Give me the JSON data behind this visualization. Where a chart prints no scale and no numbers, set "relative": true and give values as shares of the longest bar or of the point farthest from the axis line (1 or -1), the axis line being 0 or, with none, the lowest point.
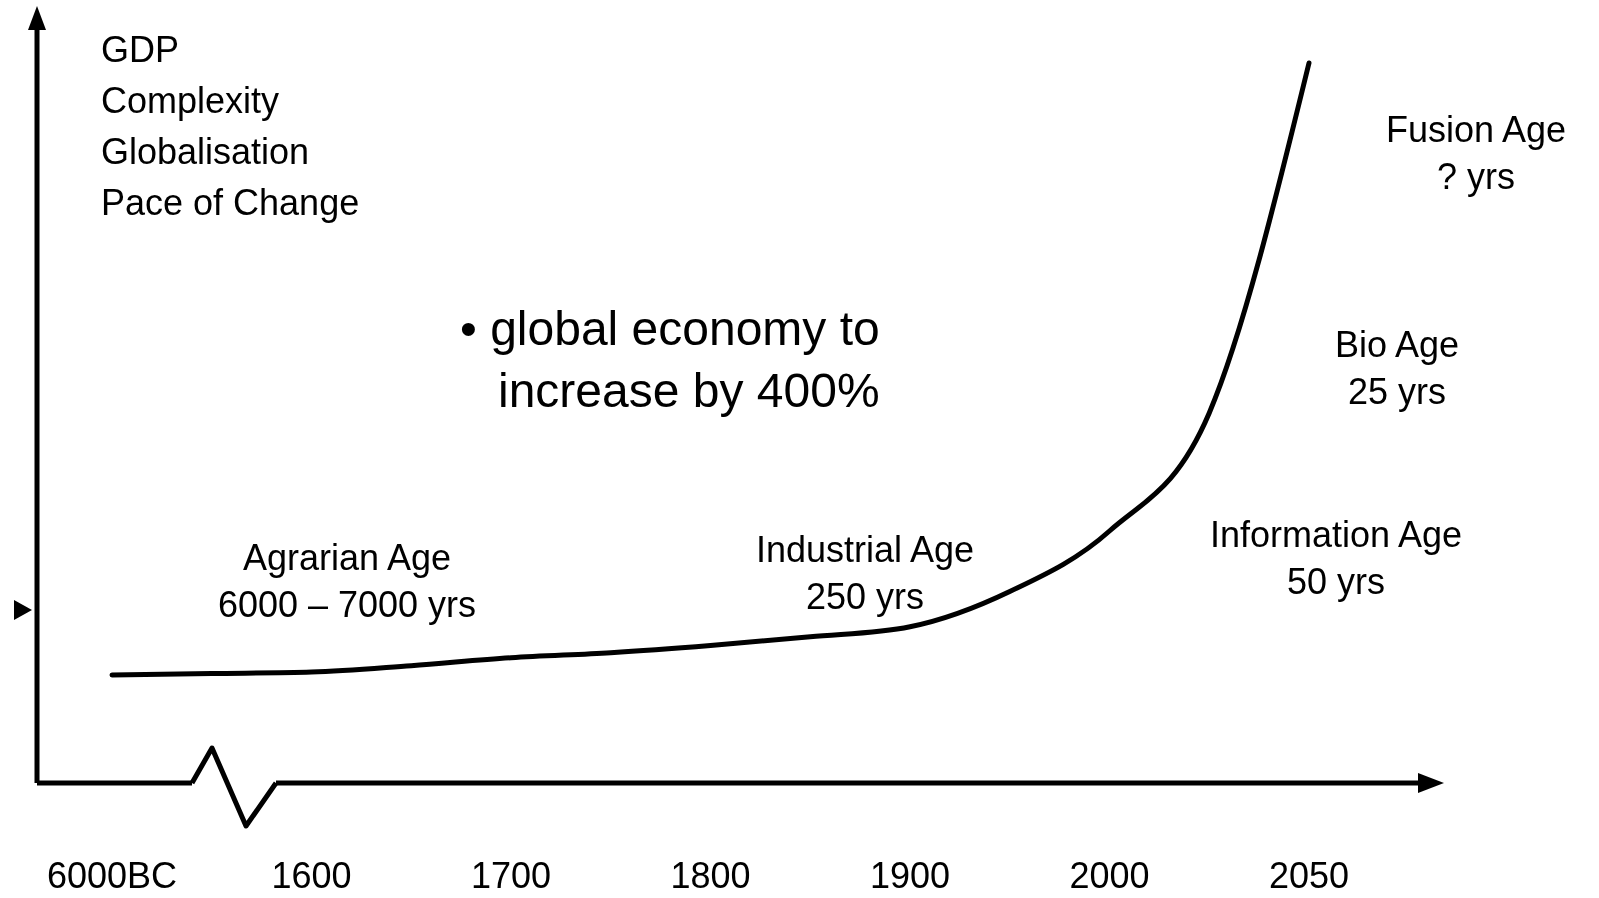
{
  "chart_data": {
    "type": "line",
    "relative": true,
    "ylabel": "GDP\nComplexity\nGlobalisation\nPace of Change",
    "categories": [
      "6000BC",
      null,
      "1600",
      null,
      "1700",
      null,
      "1800",
      null,
      "1900",
      null,
      "2000",
      null,
      "2050"
    ],
    "series": [
      {
        "color": "#000000",
        "values": [
          0.15,
          0.152,
          0.154,
          0.163,
          0.174,
          0.181,
          0.191,
          0.203,
          0.217,
          0.266,
          0.35,
          0.514,
          1
        ]
      }
    ],
    "annotations": [
      "Agrarian Age\n6000 – 7000 yrs",
      "Industrial Age\n250 yrs",
      "Information Age\n50 yrs",
      "Bio Age\n25 yrs",
      "Fusion Age\n? yrs",
      "• global economy to\nincrease by 400%"
    ],
    "marker": "none",
    "line_style": "solid"
  }
}
